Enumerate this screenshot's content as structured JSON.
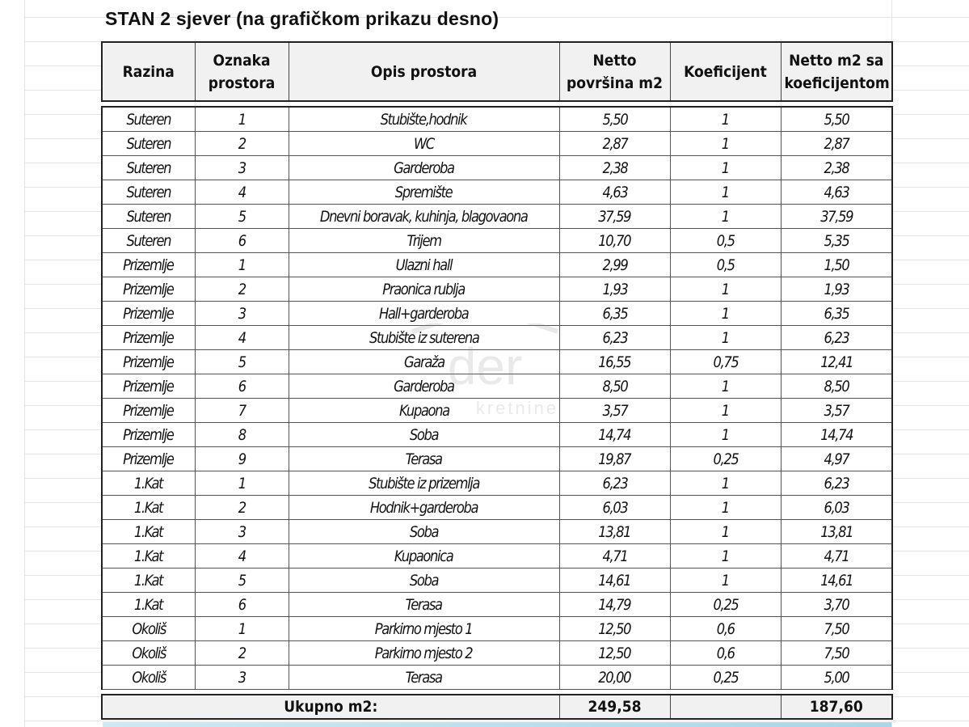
{
  "title": "STAN 2 sjever (na grafičkom prikazu desno)",
  "headers": [
    "Razina",
    "Oznaka prostora",
    "Opis prostora",
    "Netto površina m2",
    "Koeficijent",
    "Netto m2 sa koeficijentom"
  ],
  "rows": [
    [
      "Suteren",
      "1",
      "Stubište,hodnik",
      "5,50",
      "1",
      "5,50"
    ],
    [
      "Suteren",
      "2",
      "WC",
      "2,87",
      "1",
      "2,87"
    ],
    [
      "Suteren",
      "3",
      "Garderoba",
      "2,38",
      "1",
      "2,38"
    ],
    [
      "Suteren",
      "4",
      "Spremište",
      "4,63",
      "1",
      "4,63"
    ],
    [
      "Suteren",
      "5",
      "Dnevni boravak, kuhinja, blagovaona",
      "37,59",
      "1",
      "37,59"
    ],
    [
      "Suteren",
      "6",
      "Trijem",
      "10,70",
      "0,5",
      "5,35"
    ],
    [
      "Prizemlje",
      "1",
      "Ulazni hall",
      "2,99",
      "0,5",
      "1,50"
    ],
    [
      "Prizemlje",
      "2",
      "Praonica rublja",
      "1,93",
      "1",
      "1,93"
    ],
    [
      "Prizemlje",
      "3",
      "Hall+garderoba",
      "6,35",
      "1",
      "6,35"
    ],
    [
      "Prizemlje",
      "4",
      "Stubište iz suterena",
      "6,23",
      "1",
      "6,23"
    ],
    [
      "Prizemlje",
      "5",
      "Garaža",
      "16,55",
      "0,75",
      "12,41"
    ],
    [
      "Prizemlje",
      "6",
      "Garderoba",
      "8,50",
      "1",
      "8,50"
    ],
    [
      "Prizemlje",
      "7",
      "Kupaona",
      "3,57",
      "1",
      "3,57"
    ],
    [
      "Prizemlje",
      "8",
      "Soba",
      "14,74",
      "1",
      "14,74"
    ],
    [
      "Prizemlje",
      "9",
      "Terasa",
      "19,87",
      "0,25",
      "4,97"
    ],
    [
      "1.Kat",
      "1",
      "Stubište iz prizemlja",
      "6,23",
      "1",
      "6,23"
    ],
    [
      "1.Kat",
      "2",
      "Hodnik+garderoba",
      "6,03",
      "1",
      "6,03"
    ],
    [
      "1.Kat",
      "3",
      "Soba",
      "13,81",
      "1",
      "13,81"
    ],
    [
      "1.Kat",
      "4",
      "Kupaonica",
      "4,71",
      "1",
      "4,71"
    ],
    [
      "1.Kat",
      "5",
      "Soba",
      "14,61",
      "1",
      "14,61"
    ],
    [
      "1.Kat",
      "6",
      "Terasa",
      "14,79",
      "0,25",
      "3,70"
    ],
    [
      "Okoliš",
      "1",
      "Parkirno mjesto 1",
      "12,50",
      "0,6",
      "7,50"
    ],
    [
      "Okoliš",
      "2",
      "Parkirno mjesto 2",
      "12,50",
      "0,6",
      "7,50"
    ],
    [
      "Okoliš",
      "3",
      "Terasa",
      "20,00",
      "0,25",
      "5,00"
    ]
  ],
  "total": {
    "label": "Ukupno m2:",
    "netto": "249,58",
    "koeficijent": "",
    "netto_koef": "187,60"
  },
  "watermark": {
    "line1": "der",
    "line2": "kretnine"
  }
}
